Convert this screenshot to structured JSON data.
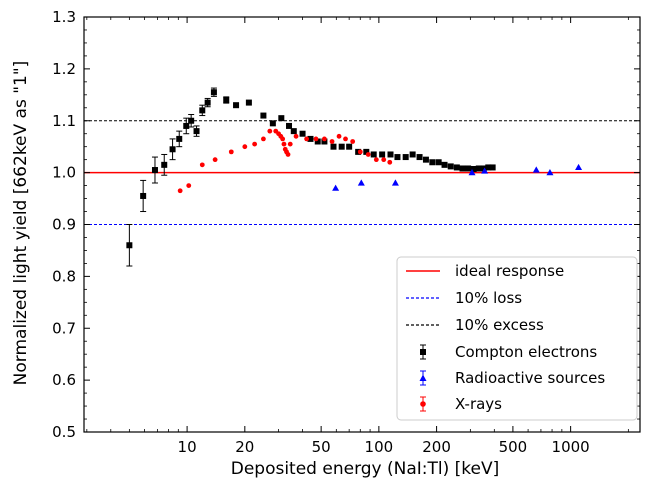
{
  "chart_data": {
    "type": "scatter",
    "xlabel": "Deposited energy (NaI:Tl) [keV]",
    "ylabel": "Normalized light yield [662keV as \"1\"]",
    "xscale": "log",
    "xlim": [
      2.9,
      2300
    ],
    "ylim": [
      0.5,
      1.3
    ],
    "xticks": [
      10,
      20,
      50,
      100,
      200,
      500,
      1000
    ],
    "xtick_labels": [
      "10",
      "20",
      "50",
      "100",
      "200",
      "500",
      "1000"
    ],
    "yticks": [
      0.5,
      0.6,
      0.7,
      0.8,
      0.9,
      1.0,
      1.1,
      1.2,
      1.3
    ],
    "ytick_labels": [
      "0.5",
      "0.6",
      "0.7",
      "0.8",
      "0.9",
      "1.0",
      "1.1",
      "1.2",
      "1.3"
    ],
    "grid": false,
    "legend_position": "bottom-right",
    "reference_lines": [
      {
        "name": "ideal response",
        "y": 1.0,
        "color": "#ff0000",
        "style": "solid"
      },
      {
        "name": "10% loss",
        "y": 0.9,
        "color": "#0000ff",
        "style": "dashed"
      },
      {
        "name": "10% excess",
        "y": 1.1,
        "color": "#000000",
        "style": "dashed"
      }
    ],
    "series": [
      {
        "name": "Compton electrons",
        "color": "#000000",
        "marker": "square",
        "points": [
          {
            "x": 5.0,
            "y": 0.86,
            "err": 0.04
          },
          {
            "x": 5.9,
            "y": 0.955,
            "err": 0.03
          },
          {
            "x": 6.8,
            "y": 1.005,
            "err": 0.025
          },
          {
            "x": 7.6,
            "y": 1.015,
            "err": 0.02
          },
          {
            "x": 8.4,
            "y": 1.045,
            "err": 0.02
          },
          {
            "x": 9.1,
            "y": 1.065,
            "err": 0.015
          },
          {
            "x": 9.9,
            "y": 1.09,
            "err": 0.015
          },
          {
            "x": 10.5,
            "y": 1.1,
            "err": 0.012
          },
          {
            "x": 11.2,
            "y": 1.08,
            "err": 0.01
          },
          {
            "x": 12.0,
            "y": 1.12,
            "err": 0.01
          },
          {
            "x": 12.8,
            "y": 1.135,
            "err": 0.008
          },
          {
            "x": 13.8,
            "y": 1.155,
            "err": 0.008
          },
          {
            "x": 16.0,
            "y": 1.14,
            "err": 0.006
          },
          {
            "x": 18.0,
            "y": 1.13
          },
          {
            "x": 21.0,
            "y": 1.135
          },
          {
            "x": 25.0,
            "y": 1.11
          },
          {
            "x": 28.0,
            "y": 1.095
          },
          {
            "x": 31.0,
            "y": 1.105
          },
          {
            "x": 34.0,
            "y": 1.09
          },
          {
            "x": 36.0,
            "y": 1.08
          },
          {
            "x": 40.0,
            "y": 1.075
          },
          {
            "x": 44.0,
            "y": 1.065
          },
          {
            "x": 48.0,
            "y": 1.06
          },
          {
            "x": 52.0,
            "y": 1.06
          },
          {
            "x": 58.0,
            "y": 1.05
          },
          {
            "x": 64.0,
            "y": 1.05
          },
          {
            "x": 70.0,
            "y": 1.05
          },
          {
            "x": 78.0,
            "y": 1.04
          },
          {
            "x": 86.0,
            "y": 1.04
          },
          {
            "x": 94.0,
            "y": 1.035
          },
          {
            "x": 104.0,
            "y": 1.035
          },
          {
            "x": 115.0,
            "y": 1.035
          },
          {
            "x": 125.0,
            "y": 1.03
          },
          {
            "x": 138.0,
            "y": 1.03
          },
          {
            "x": 150.0,
            "y": 1.035
          },
          {
            "x": 163.0,
            "y": 1.03
          },
          {
            "x": 176.0,
            "y": 1.025
          },
          {
            "x": 190.0,
            "y": 1.02
          },
          {
            "x": 205.0,
            "y": 1.02
          },
          {
            "x": 220.0,
            "y": 1.015
          },
          {
            "x": 237.0,
            "y": 1.012
          },
          {
            "x": 255.0,
            "y": 1.01
          },
          {
            "x": 273.0,
            "y": 1.008
          },
          {
            "x": 292.0,
            "y": 1.008
          },
          {
            "x": 312.0,
            "y": 1.007
          },
          {
            "x": 332.0,
            "y": 1.008
          },
          {
            "x": 352.0,
            "y": 1.008
          },
          {
            "x": 372.0,
            "y": 1.01
          },
          {
            "x": 392.0,
            "y": 1.01
          }
        ]
      },
      {
        "name": "Radioactive sources",
        "color": "#0000ff",
        "marker": "triangle",
        "points": [
          {
            "x": 59.5,
            "y": 0.97
          },
          {
            "x": 81.0,
            "y": 0.98
          },
          {
            "x": 122.0,
            "y": 0.98
          },
          {
            "x": 306.0,
            "y": 1.0
          },
          {
            "x": 356.0,
            "y": 1.003
          },
          {
            "x": 662.0,
            "y": 1.005
          },
          {
            "x": 780.0,
            "y": 1.0
          },
          {
            "x": 1100.0,
            "y": 1.01
          }
        ]
      },
      {
        "name": "X-rays",
        "color": "#ff0000",
        "marker": "circle",
        "points": [
          {
            "x": 9.2,
            "y": 0.965
          },
          {
            "x": 10.2,
            "y": 0.975
          },
          {
            "x": 12.0,
            "y": 1.015
          },
          {
            "x": 14.0,
            "y": 1.025
          },
          {
            "x": 17.0,
            "y": 1.04
          },
          {
            "x": 20.0,
            "y": 1.05
          },
          {
            "x": 22.5,
            "y": 1.055
          },
          {
            "x": 25.0,
            "y": 1.065
          },
          {
            "x": 27.0,
            "y": 1.08
          },
          {
            "x": 29.0,
            "y": 1.08
          },
          {
            "x": 30.0,
            "y": 1.075
          },
          {
            "x": 30.8,
            "y": 1.07
          },
          {
            "x": 31.5,
            "y": 1.065
          },
          {
            "x": 32.0,
            "y": 1.055
          },
          {
            "x": 32.5,
            "y": 1.045
          },
          {
            "x": 33.0,
            "y": 1.04
          },
          {
            "x": 33.6,
            "y": 1.035
          },
          {
            "x": 34.5,
            "y": 1.055
          },
          {
            "x": 37.0,
            "y": 1.07
          },
          {
            "x": 42.0,
            "y": 1.065
          },
          {
            "x": 47.0,
            "y": 1.065
          },
          {
            "x": 52.0,
            "y": 1.065
          },
          {
            "x": 57.0,
            "y": 1.06
          },
          {
            "x": 62.0,
            "y": 1.07
          },
          {
            "x": 67.0,
            "y": 1.065
          },
          {
            "x": 73.0,
            "y": 1.06
          },
          {
            "x": 80.0,
            "y": 1.04
          },
          {
            "x": 88.0,
            "y": 1.035
          },
          {
            "x": 97.0,
            "y": 1.025
          },
          {
            "x": 106.0,
            "y": 1.025
          },
          {
            "x": 114.0,
            "y": 1.02
          }
        ]
      }
    ]
  }
}
